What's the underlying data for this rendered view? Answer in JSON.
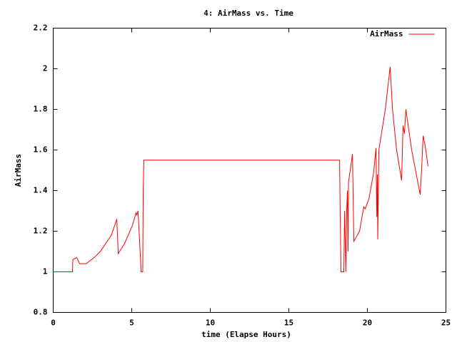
{
  "chart_data": {
    "type": "line",
    "title": "4: AirMass vs. Time",
    "x_label": "time (Elapse Hours)",
    "y_label": "AirMass",
    "legend_position": "upper right",
    "xlim": [
      0,
      25
    ],
    "xticks": [
      0,
      5,
      10,
      15,
      20,
      25
    ],
    "ylim": [
      0.8,
      2.2
    ],
    "yticks": [
      0.8,
      1,
      1.2,
      1.4,
      1.6,
      1.8,
      2,
      2.2
    ],
    "x": [
      0,
      1.23,
      1.25,
      1.5,
      1.68,
      2.1,
      2.6,
      3.0,
      3.7,
      4.05,
      4.14,
      4.55,
      5.05,
      5.27,
      5.32,
      5.4,
      5.6,
      5.7,
      5.73,
      5.77,
      18.23,
      18.27,
      18.32,
      18.5,
      18.55,
      18.63,
      18.68,
      18.73,
      18.77,
      18.8,
      18.85,
      19.0,
      19.05,
      19.14,
      19.5,
      19.77,
      19.86,
      20.1,
      20.4,
      20.55,
      20.6,
      20.64,
      20.66,
      20.73,
      21.14,
      21.45,
      21.6,
      21.86,
      22.18,
      22.27,
      22.36,
      22.45,
      22.82,
      23.36,
      23.45,
      23.55,
      23.68,
      23.86
    ],
    "series": [
      {
        "name": "AirMass",
        "color": "#ff0000",
        "values": [
          1.0,
          1.0,
          1.06,
          1.07,
          1.04,
          1.04,
          1.07,
          1.1,
          1.18,
          1.26,
          1.09,
          1.14,
          1.23,
          1.29,
          1.28,
          1.3,
          1.0,
          1.0,
          1.4,
          1.55,
          1.55,
          1.28,
          1.0,
          1.0,
          1.3,
          1.0,
          1.3,
          1.4,
          1.1,
          1.44,
          1.47,
          1.55,
          1.58,
          1.15,
          1.2,
          1.32,
          1.31,
          1.36,
          1.49,
          1.61,
          1.27,
          1.48,
          1.16,
          1.6,
          1.8,
          2.01,
          1.8,
          1.6,
          1.45,
          1.72,
          1.68,
          1.8,
          1.6,
          1.38,
          1.5,
          1.67,
          1.62,
          1.52
        ]
      }
    ]
  }
}
